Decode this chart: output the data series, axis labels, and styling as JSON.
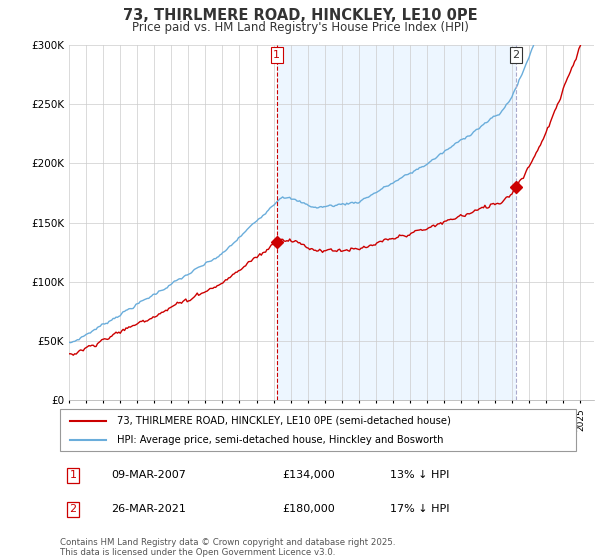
{
  "title_line1": "73, THIRLMERE ROAD, HINCKLEY, LE10 0PE",
  "title_line2": "Price paid vs. HM Land Registry's House Price Index (HPI)",
  "legend_line1": "73, THIRLMERE ROAD, HINCKLEY, LE10 0PE (semi-detached house)",
  "legend_line2": "HPI: Average price, semi-detached house, Hinckley and Bosworth",
  "annotation1_label": "1",
  "annotation1_date": "09-MAR-2007",
  "annotation1_price": "£134,000",
  "annotation1_note": "13% ↓ HPI",
  "annotation2_label": "2",
  "annotation2_date": "26-MAR-2021",
  "annotation2_price": "£180,000",
  "annotation2_note": "17% ↓ HPI",
  "footer": "Contains HM Land Registry data © Crown copyright and database right 2025.\nThis data is licensed under the Open Government Licence v3.0.",
  "sale1_year": 2007.19,
  "sale1_price": 134000,
  "sale2_year": 2021.23,
  "sale2_price": 180000,
  "hpi_color": "#6aaddb",
  "price_color": "#cc0000",
  "vline1_color": "#cc0000",
  "vline2_color": "#aaaacc",
  "fill_color": "#ddeeff",
  "grid_color": "#cccccc",
  "background_color": "#ffffff",
  "ylim_max": 300000,
  "title_color": "#333333"
}
